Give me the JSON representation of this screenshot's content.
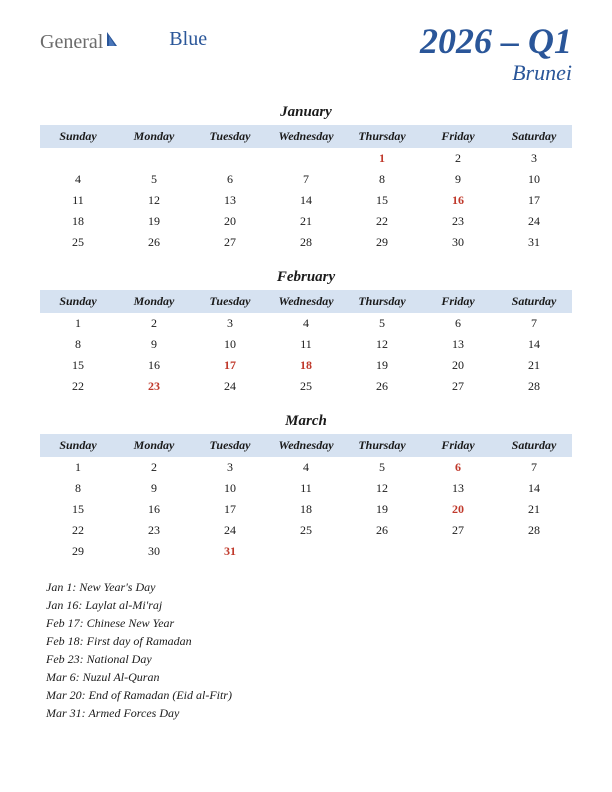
{
  "logo": {
    "part1": "General",
    "part2": "Blue"
  },
  "title": {
    "year_quarter": "2026 – Q1",
    "country": "Brunei"
  },
  "day_headers": [
    "Sunday",
    "Monday",
    "Tuesday",
    "Wednesday",
    "Thursday",
    "Friday",
    "Saturday"
  ],
  "colors": {
    "header_bg": "#d6e2f1",
    "title_color": "#2a5699",
    "holiday_color": "#c0392b",
    "text_color": "#1a1a1a",
    "background": "#ffffff"
  },
  "months": [
    {
      "name": "January",
      "weeks": [
        [
          "",
          "",
          "",
          "",
          "1",
          "2",
          "3"
        ],
        [
          "4",
          "5",
          "6",
          "7",
          "8",
          "9",
          "10"
        ],
        [
          "11",
          "12",
          "13",
          "14",
          "15",
          "16",
          "17"
        ],
        [
          "18",
          "19",
          "20",
          "21",
          "22",
          "23",
          "24"
        ],
        [
          "25",
          "26",
          "27",
          "28",
          "29",
          "30",
          "31"
        ]
      ],
      "holidays": [
        "1",
        "16"
      ]
    },
    {
      "name": "February",
      "weeks": [
        [
          "1",
          "2",
          "3",
          "4",
          "5",
          "6",
          "7"
        ],
        [
          "8",
          "9",
          "10",
          "11",
          "12",
          "13",
          "14"
        ],
        [
          "15",
          "16",
          "17",
          "18",
          "19",
          "20",
          "21"
        ],
        [
          "22",
          "23",
          "24",
          "25",
          "26",
          "27",
          "28"
        ]
      ],
      "holidays": [
        "17",
        "18",
        "23"
      ]
    },
    {
      "name": "March",
      "weeks": [
        [
          "1",
          "2",
          "3",
          "4",
          "5",
          "6",
          "7"
        ],
        [
          "8",
          "9",
          "10",
          "11",
          "12",
          "13",
          "14"
        ],
        [
          "15",
          "16",
          "17",
          "18",
          "19",
          "20",
          "21"
        ],
        [
          "22",
          "23",
          "24",
          "25",
          "26",
          "27",
          "28"
        ],
        [
          "29",
          "30",
          "31",
          "",
          "",
          "",
          ""
        ]
      ],
      "holidays": [
        "6",
        "20",
        "31"
      ]
    }
  ],
  "holiday_list": [
    "Jan 1: New Year's Day",
    "Jan 16: Laylat al-Mi'raj",
    "Feb 17: Chinese New Year",
    "Feb 18: First day of Ramadan",
    "Feb 23: National Day",
    "Mar 6: Nuzul Al-Quran",
    "Mar 20: End of Ramadan (Eid al-Fitr)",
    "Mar 31: Armed Forces Day"
  ]
}
